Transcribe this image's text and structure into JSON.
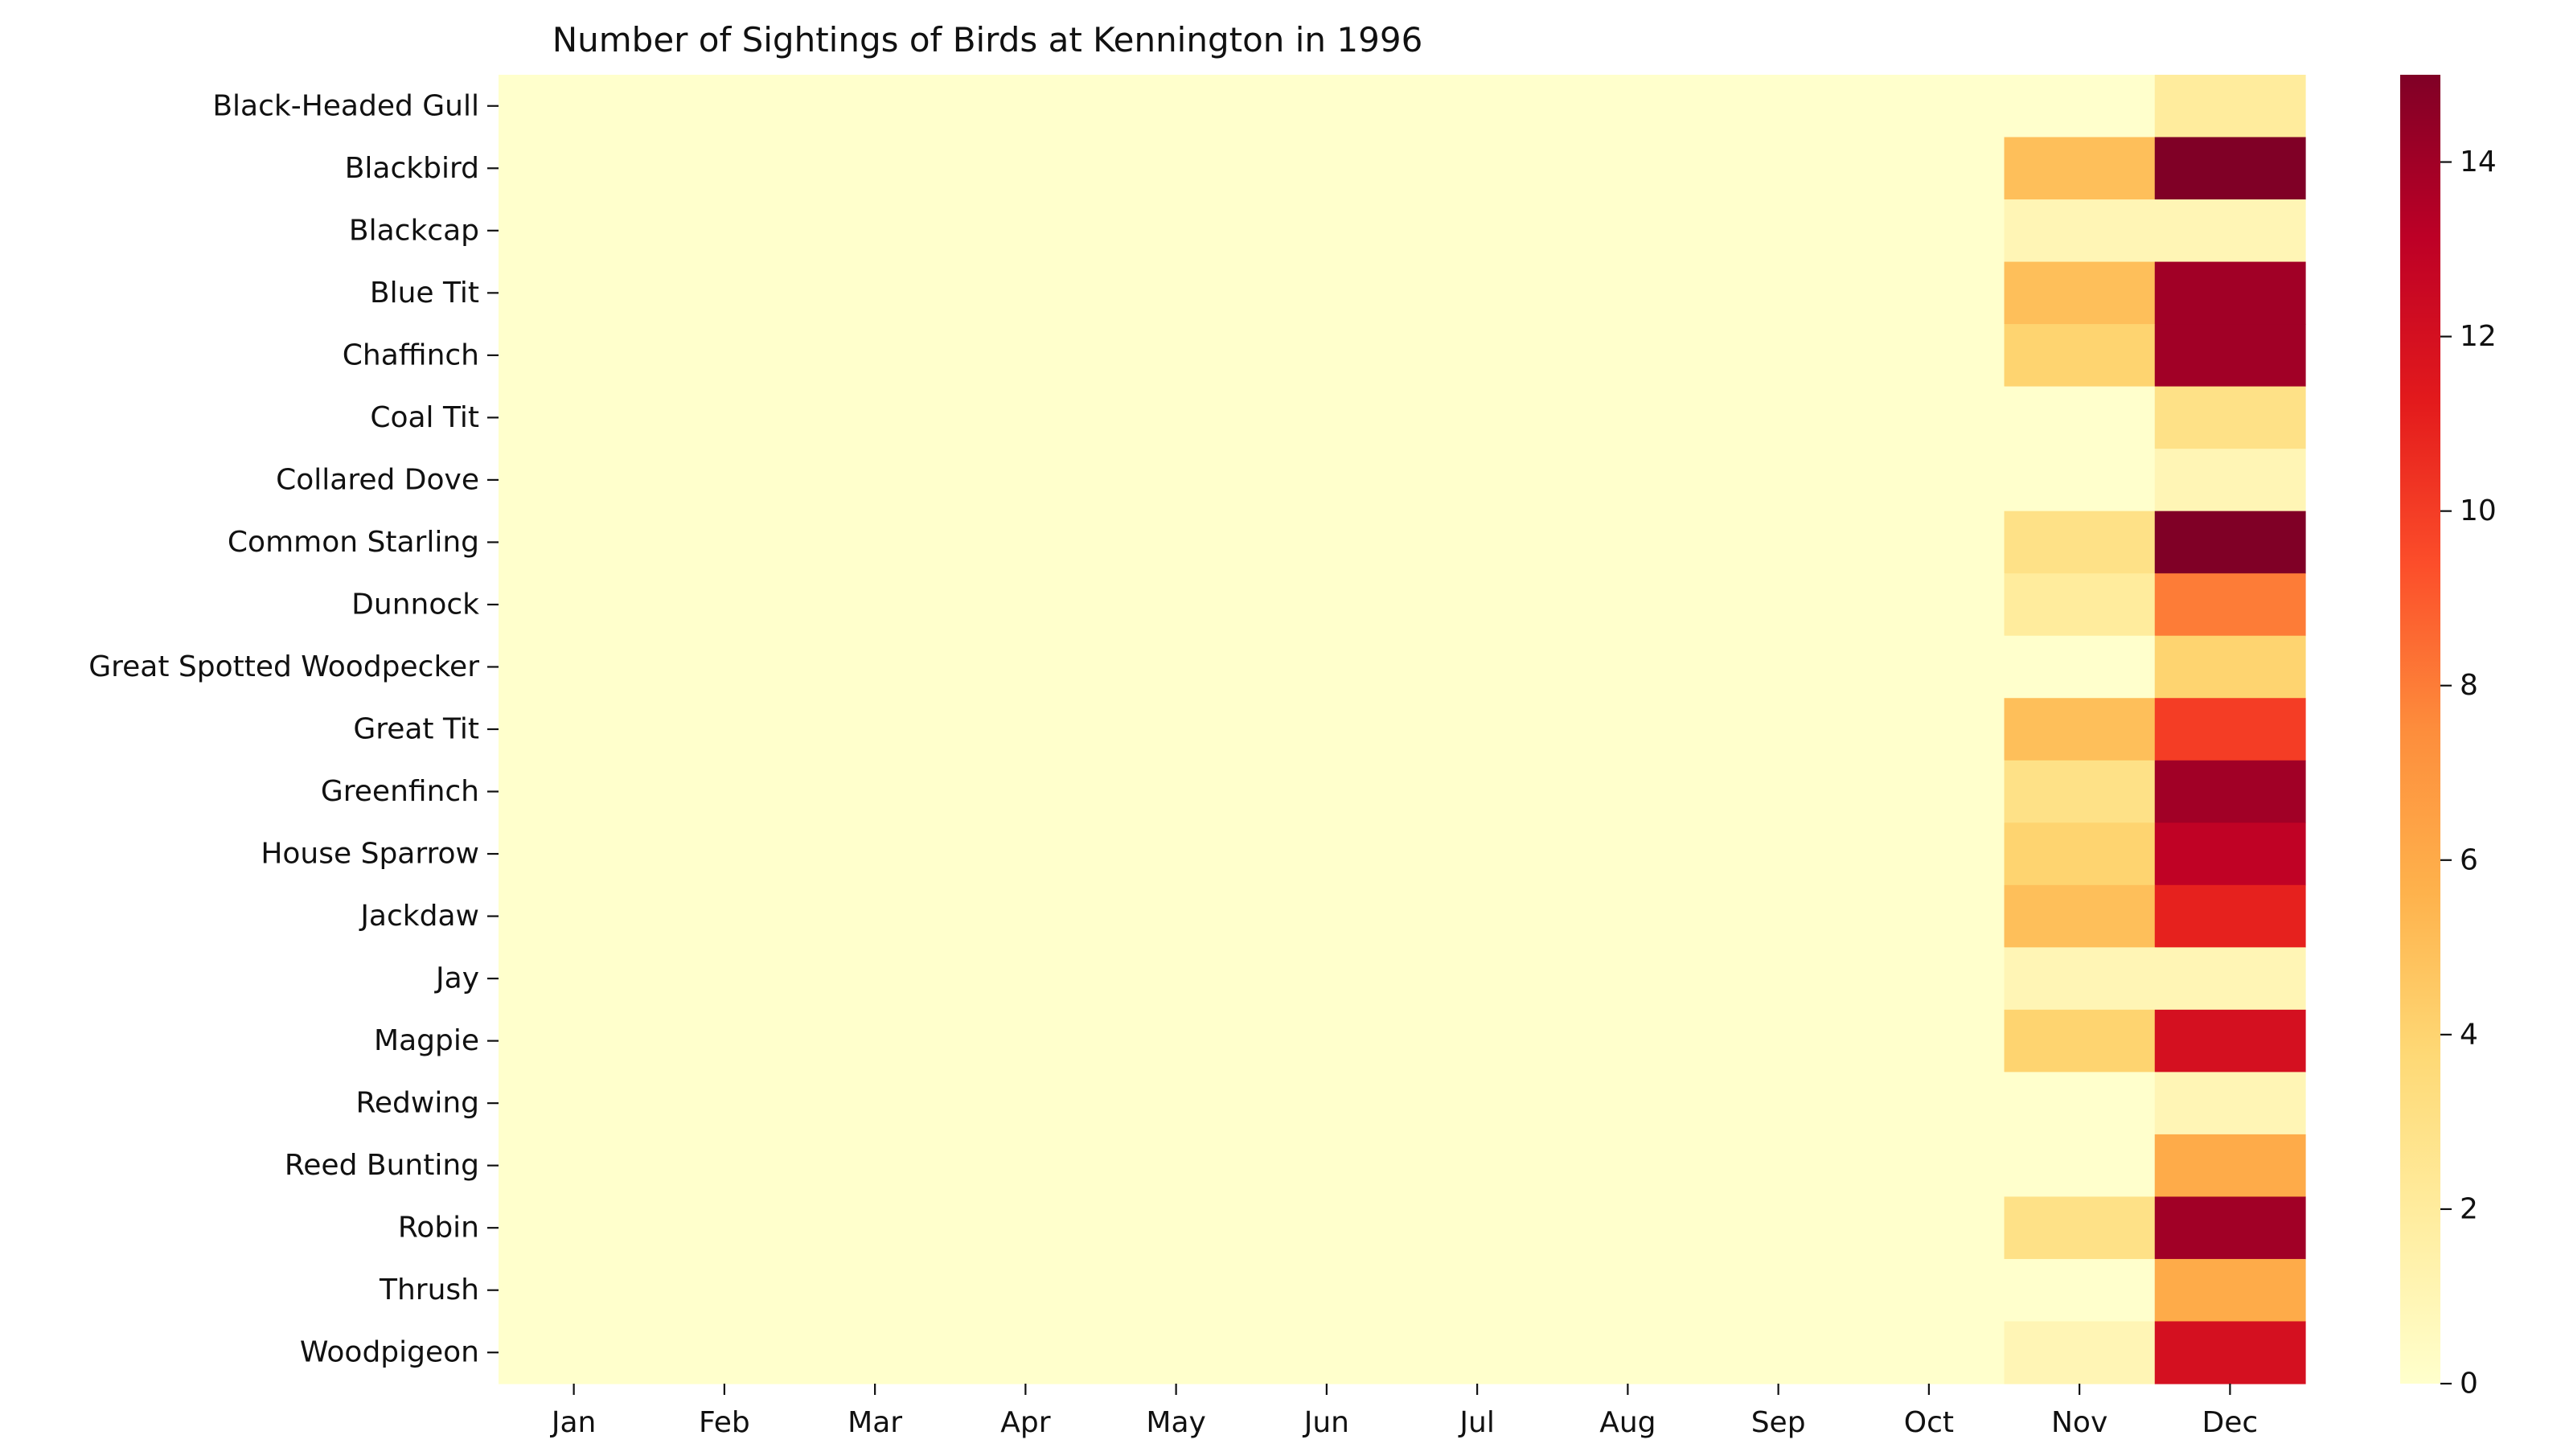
{
  "chart_data": {
    "type": "heatmap",
    "title": "Number of Sightings of Birds at Kennington in 1996",
    "xlabel": "",
    "ylabel": "",
    "colormap": "YlOrRd",
    "vmin": 0,
    "vmax": 15,
    "columns": [
      "Jan",
      "Feb",
      "Mar",
      "Apr",
      "May",
      "Jun",
      "Jul",
      "Aug",
      "Sep",
      "Oct",
      "Nov",
      "Dec"
    ],
    "rows": [
      "Black-Headed Gull",
      "Blackbird",
      "Blackcap",
      "Blue Tit",
      "Chaffinch",
      "Coal Tit",
      "Collared Dove",
      "Common Starling",
      "Dunnock",
      "Great Spotted Woodpecker",
      "Great Tit",
      "Greenfinch",
      "House Sparrow",
      "Jackdaw",
      "Jay",
      "Magpie",
      "Redwing",
      "Reed Bunting",
      "Robin",
      "Thrush",
      "Woodpigeon"
    ],
    "values": [
      [
        0,
        0,
        0,
        0,
        0,
        0,
        0,
        0,
        0,
        0,
        0,
        2
      ],
      [
        0,
        0,
        0,
        0,
        0,
        0,
        0,
        0,
        0,
        0,
        5,
        15
      ],
      [
        0,
        0,
        0,
        0,
        0,
        0,
        0,
        0,
        0,
        0,
        1,
        1
      ],
      [
        0,
        0,
        0,
        0,
        0,
        0,
        0,
        0,
        0,
        0,
        5,
        14
      ],
      [
        0,
        0,
        0,
        0,
        0,
        0,
        0,
        0,
        0,
        0,
        4,
        14
      ],
      [
        0,
        0,
        0,
        0,
        0,
        0,
        0,
        0,
        0,
        0,
        0,
        3
      ],
      [
        0,
        0,
        0,
        0,
        0,
        0,
        0,
        0,
        0,
        0,
        0,
        1
      ],
      [
        0,
        0,
        0,
        0,
        0,
        0,
        0,
        0,
        0,
        0,
        3,
        15
      ],
      [
        0,
        0,
        0,
        0,
        0,
        0,
        0,
        0,
        0,
        0,
        2,
        8
      ],
      [
        0,
        0,
        0,
        0,
        0,
        0,
        0,
        0,
        0,
        0,
        0,
        4
      ],
      [
        0,
        0,
        0,
        0,
        0,
        0,
        0,
        0,
        0,
        0,
        5,
        10
      ],
      [
        0,
        0,
        0,
        0,
        0,
        0,
        0,
        0,
        0,
        0,
        3,
        14
      ],
      [
        0,
        0,
        0,
        0,
        0,
        0,
        0,
        0,
        0,
        0,
        4,
        13
      ],
      [
        0,
        0,
        0,
        0,
        0,
        0,
        0,
        0,
        0,
        0,
        5,
        11
      ],
      [
        0,
        0,
        0,
        0,
        0,
        0,
        0,
        0,
        0,
        0,
        1,
        1
      ],
      [
        0,
        0,
        0,
        0,
        0,
        0,
        0,
        0,
        0,
        0,
        4,
        12
      ],
      [
        0,
        0,
        0,
        0,
        0,
        0,
        0,
        0,
        0,
        0,
        0,
        1
      ],
      [
        0,
        0,
        0,
        0,
        0,
        0,
        0,
        0,
        0,
        0,
        0,
        6
      ],
      [
        0,
        0,
        0,
        0,
        0,
        0,
        0,
        0,
        0,
        0,
        3,
        14
      ],
      [
        0,
        0,
        0,
        0,
        0,
        0,
        0,
        0,
        0,
        0,
        0,
        6
      ],
      [
        0,
        0,
        0,
        0,
        0,
        0,
        0,
        0,
        0,
        0,
        1,
        12
      ]
    ],
    "colorbar_ticks": [
      0,
      2,
      4,
      6,
      8,
      10,
      12,
      14
    ]
  }
}
